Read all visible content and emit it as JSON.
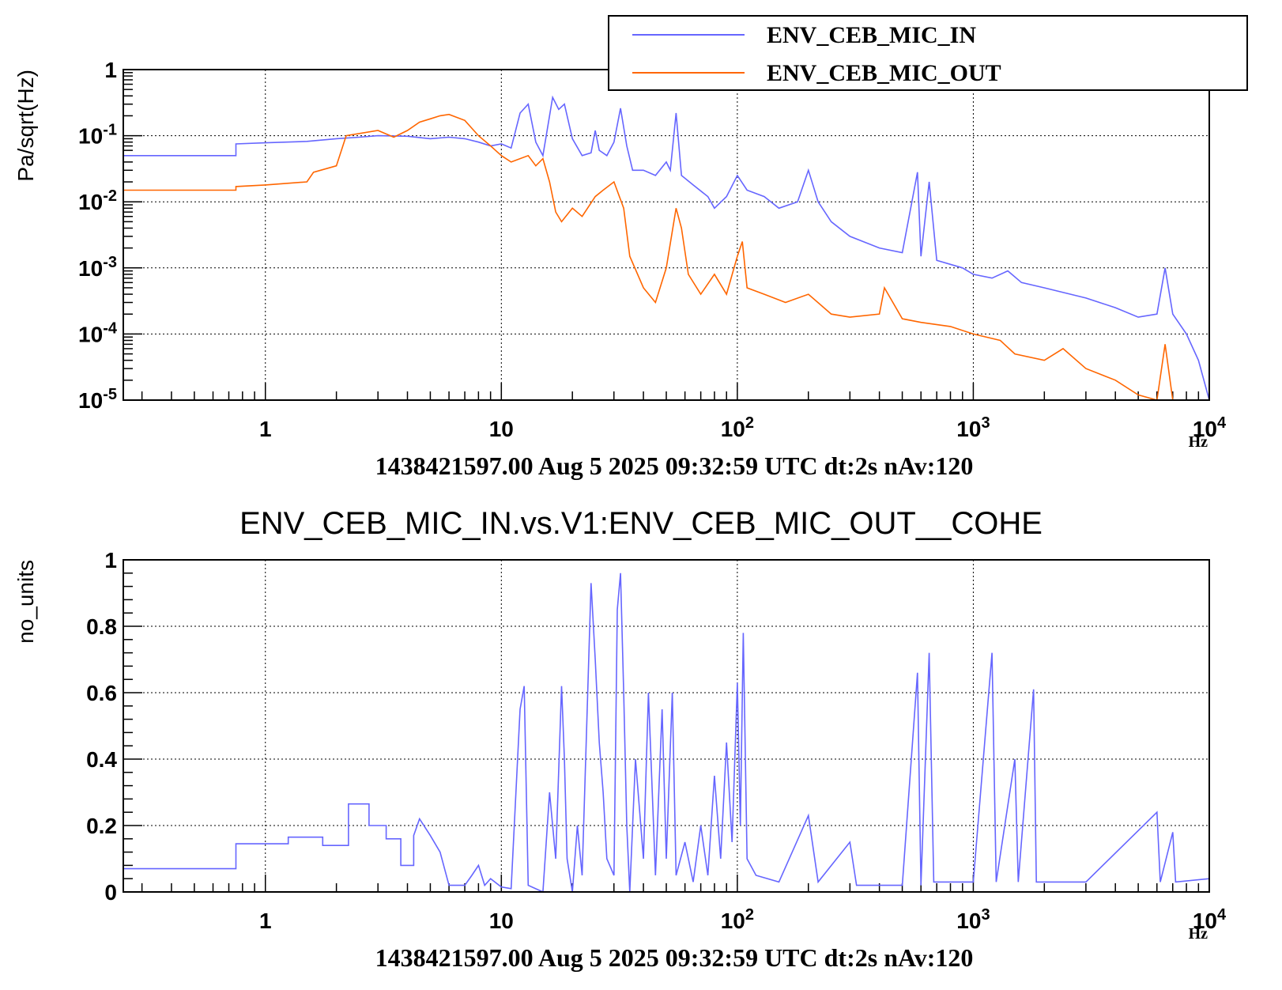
{
  "chart_data": [
    {
      "type": "line",
      "title": "",
      "xlabel": "Hz",
      "ylabel": "Pa/sqrt(Hz)",
      "xscale": "log",
      "yscale": "log",
      "xlim": [
        0.25,
        10000
      ],
      "ylim": [
        1e-05,
        1
      ],
      "grid": true,
      "legend_position": "top-right",
      "footer": "1438421597.00 Aug 5 2025 09:32:59 UTC dt:2s nAv:120",
      "x_tick_labels": [
        {
          "value": 1,
          "base": "1",
          "exp": ""
        },
        {
          "value": 10,
          "base": "10",
          "exp": ""
        },
        {
          "value": 100,
          "base": "10",
          "exp": "2"
        },
        {
          "value": 1000,
          "base": "10",
          "exp": "3"
        },
        {
          "value": 10000,
          "base": "10",
          "exp": "4"
        }
      ],
      "y_tick_labels": [
        {
          "value": 1,
          "base": "1",
          "exp": ""
        },
        {
          "value": 0.1,
          "base": "10",
          "exp": "-1"
        },
        {
          "value": 0.01,
          "base": "10",
          "exp": "-2"
        },
        {
          "value": 0.001,
          "base": "10",
          "exp": "-3"
        },
        {
          "value": 0.0001,
          "base": "10",
          "exp": "-4"
        },
        {
          "value": 1e-05,
          "base": "10",
          "exp": "-5"
        }
      ],
      "series": [
        {
          "name": "ENV_CEB_MIC_IN",
          "color": "#6666ff",
          "points": [
            [
              0.25,
              0.05
            ],
            [
              0.75,
              0.05
            ],
            [
              0.75,
              0.075
            ],
            [
              1.0,
              0.078
            ],
            [
              1.5,
              0.082
            ],
            [
              2.0,
              0.09
            ],
            [
              2.5,
              0.095
            ],
            [
              3.0,
              0.1
            ],
            [
              4.0,
              0.098
            ],
            [
              5.0,
              0.09
            ],
            [
              6.0,
              0.095
            ],
            [
              7.0,
              0.09
            ],
            [
              8.0,
              0.08
            ],
            [
              9.0,
              0.07
            ],
            [
              10.0,
              0.075
            ],
            [
              11.0,
              0.065
            ],
            [
              12.0,
              0.22
            ],
            [
              13.0,
              0.3
            ],
            [
              14.0,
              0.08
            ],
            [
              15.0,
              0.05
            ],
            [
              16.5,
              0.38
            ],
            [
              17.5,
              0.25
            ],
            [
              18.5,
              0.3
            ],
            [
              20.0,
              0.09
            ],
            [
              22.0,
              0.05
            ],
            [
              24.0,
              0.055
            ],
            [
              25.0,
              0.12
            ],
            [
              26.0,
              0.06
            ],
            [
              28.0,
              0.05
            ],
            [
              30.0,
              0.08
            ],
            [
              32.0,
              0.26
            ],
            [
              34.0,
              0.07
            ],
            [
              36.0,
              0.03
            ],
            [
              40.0,
              0.03
            ],
            [
              45.0,
              0.025
            ],
            [
              50.0,
              0.04
            ],
            [
              52.0,
              0.03
            ],
            [
              55.0,
              0.22
            ],
            [
              58.0,
              0.025
            ],
            [
              65.0,
              0.018
            ],
            [
              75.0,
              0.012
            ],
            [
              80.0,
              0.008
            ],
            [
              90.0,
              0.012
            ],
            [
              100.0,
              0.025
            ],
            [
              110.0,
              0.015
            ],
            [
              130.0,
              0.012
            ],
            [
              150.0,
              0.008
            ],
            [
              180.0,
              0.01
            ],
            [
              200.0,
              0.03
            ],
            [
              220.0,
              0.01
            ],
            [
              250.0,
              0.005
            ],
            [
              300.0,
              0.003
            ],
            [
              400.0,
              0.002
            ],
            [
              500.0,
              0.0017
            ],
            [
              580.0,
              0.028
            ],
            [
              600.0,
              0.0015
            ],
            [
              650.0,
              0.02
            ],
            [
              700.0,
              0.0013
            ],
            [
              900.0,
              0.001
            ],
            [
              1000.0,
              0.0008
            ],
            [
              1200.0,
              0.0007
            ],
            [
              1400.0,
              0.0009
            ],
            [
              1600.0,
              0.0006
            ],
            [
              2000.0,
              0.0005
            ],
            [
              3000.0,
              0.00035
            ],
            [
              4000.0,
              0.00025
            ],
            [
              5000.0,
              0.00018
            ],
            [
              6000.0,
              0.0002
            ],
            [
              6500.0,
              0.001
            ],
            [
              7000.0,
              0.0002
            ],
            [
              8000.0,
              0.0001
            ],
            [
              9000.0,
              4e-05
            ],
            [
              10000.0,
              1e-05
            ]
          ]
        },
        {
          "name": "ENV_CEB_MIC_OUT",
          "color": "#ff6600",
          "points": [
            [
              0.25,
              1.05e-05
            ],
            [
              0.25,
              0.015
            ],
            [
              0.75,
              0.015
            ],
            [
              0.75,
              0.017
            ],
            [
              1.0,
              0.018
            ],
            [
              1.5,
              0.02
            ],
            [
              1.6,
              0.028
            ],
            [
              2.0,
              0.035
            ],
            [
              2.2,
              0.1
            ],
            [
              3.0,
              0.12
            ],
            [
              3.5,
              0.095
            ],
            [
              4.0,
              0.12
            ],
            [
              4.5,
              0.16
            ],
            [
              5.0,
              0.18
            ],
            [
              5.5,
              0.2
            ],
            [
              6.0,
              0.21
            ],
            [
              7.0,
              0.17
            ],
            [
              8.0,
              0.1
            ],
            [
              9.0,
              0.07
            ],
            [
              10.0,
              0.05
            ],
            [
              11.0,
              0.04
            ],
            [
              13.0,
              0.05
            ],
            [
              14.0,
              0.035
            ],
            [
              15.0,
              0.045
            ],
            [
              16.0,
              0.02
            ],
            [
              17.0,
              0.007
            ],
            [
              18.0,
              0.005
            ],
            [
              20.0,
              0.008
            ],
            [
              22.0,
              0.006
            ],
            [
              25.0,
              0.012
            ],
            [
              27.0,
              0.015
            ],
            [
              30.0,
              0.02
            ],
            [
              33.0,
              0.008
            ],
            [
              35.0,
              0.0015
            ],
            [
              40.0,
              0.0005
            ],
            [
              45.0,
              0.0003
            ],
            [
              50.0,
              0.001
            ],
            [
              55.0,
              0.008
            ],
            [
              58.0,
              0.004
            ],
            [
              62.0,
              0.0008
            ],
            [
              70.0,
              0.0004
            ],
            [
              80.0,
              0.0008
            ],
            [
              90.0,
              0.0004
            ],
            [
              100.0,
              0.0015
            ],
            [
              105.0,
              0.0025
            ],
            [
              110.0,
              0.0005
            ],
            [
              130.0,
              0.0004
            ],
            [
              160.0,
              0.0003
            ],
            [
              200.0,
              0.0004
            ],
            [
              250.0,
              0.0002
            ],
            [
              300.0,
              0.00018
            ],
            [
              400.0,
              0.0002
            ],
            [
              420.0,
              0.0005
            ],
            [
              500.0,
              0.00017
            ],
            [
              600.0,
              0.00015
            ],
            [
              800.0,
              0.00013
            ],
            [
              1000.0,
              0.0001
            ],
            [
              1300.0,
              8e-05
            ],
            [
              1500.0,
              5e-05
            ],
            [
              2000.0,
              4e-05
            ],
            [
              2400.0,
              6e-05
            ],
            [
              3000.0,
              3e-05
            ],
            [
              4000.0,
              2e-05
            ],
            [
              5000.0,
              1.2e-05
            ],
            [
              6000.0,
              1e-05
            ],
            [
              6500.0,
              7e-05
            ],
            [
              7000.0,
              1e-05
            ]
          ]
        }
      ]
    },
    {
      "type": "line",
      "title": "ENV_CEB_MIC_IN.vs.V1:ENV_CEB_MIC_OUT__COHE",
      "xlabel": "Hz",
      "ylabel": "no_units",
      "xscale": "log",
      "yscale": "linear",
      "xlim": [
        0.25,
        10000
      ],
      "ylim": [
        0,
        1
      ],
      "grid": true,
      "footer": "1438421597.00 Aug 5 2025 09:32:59 UTC dt:2s nAv:120",
      "x_tick_labels": [
        {
          "value": 1,
          "base": "1",
          "exp": ""
        },
        {
          "value": 10,
          "base": "10",
          "exp": ""
        },
        {
          "value": 100,
          "base": "10",
          "exp": "2"
        },
        {
          "value": 1000,
          "base": "10",
          "exp": "3"
        },
        {
          "value": 10000,
          "base": "10",
          "exp": "4"
        }
      ],
      "y_tick_labels": [
        {
          "value": 0,
          "base": "0",
          "exp": ""
        },
        {
          "value": 0.2,
          "base": "0.2",
          "exp": ""
        },
        {
          "value": 0.4,
          "base": "0.4",
          "exp": ""
        },
        {
          "value": 0.6,
          "base": "0.6",
          "exp": ""
        },
        {
          "value": 0.8,
          "base": "0.8",
          "exp": ""
        },
        {
          "value": 1,
          "base": "1",
          "exp": ""
        }
      ],
      "series": [
        {
          "name": "",
          "color": "#6666ff",
          "points": [
            [
              0.25,
              0.07
            ],
            [
              0.75,
              0.07
            ],
            [
              0.75,
              0.145
            ],
            [
              1.25,
              0.145
            ],
            [
              1.25,
              0.165
            ],
            [
              1.75,
              0.165
            ],
            [
              1.75,
              0.14
            ],
            [
              2.25,
              0.14
            ],
            [
              2.25,
              0.265
            ],
            [
              2.75,
              0.265
            ],
            [
              2.75,
              0.2
            ],
            [
              3.25,
              0.2
            ],
            [
              3.25,
              0.16
            ],
            [
              3.75,
              0.16
            ],
            [
              3.75,
              0.08
            ],
            [
              4.25,
              0.08
            ],
            [
              4.25,
              0.17
            ],
            [
              4.5,
              0.22
            ],
            [
              5.0,
              0.17
            ],
            [
              5.5,
              0.12
            ],
            [
              6.0,
              0.02
            ],
            [
              7.0,
              0.02
            ],
            [
              7.5,
              0.05
            ],
            [
              8.0,
              0.08
            ],
            [
              8.5,
              0.02
            ],
            [
              9.0,
              0.04
            ],
            [
              10.0,
              0.015
            ],
            [
              11.0,
              0.01
            ],
            [
              12.0,
              0.55
            ],
            [
              12.5,
              0.62
            ],
            [
              13.0,
              0.02
            ],
            [
              15.0,
              0.0
            ],
            [
              16.0,
              0.3
            ],
            [
              17.0,
              0.1
            ],
            [
              18.0,
              0.62
            ],
            [
              18.5,
              0.4
            ],
            [
              19.0,
              0.1
            ],
            [
              20.0,
              0.0
            ],
            [
              21.0,
              0.2
            ],
            [
              22.0,
              0.05
            ],
            [
              23.0,
              0.5
            ],
            [
              24.0,
              0.93
            ],
            [
              25.0,
              0.7
            ],
            [
              26.0,
              0.45
            ],
            [
              27.0,
              0.3
            ],
            [
              28.0,
              0.1
            ],
            [
              30.0,
              0.05
            ],
            [
              31.0,
              0.85
            ],
            [
              32.0,
              0.96
            ],
            [
              33.0,
              0.6
            ],
            [
              34.0,
              0.2
            ],
            [
              35.0,
              0.0
            ],
            [
              37.0,
              0.4
            ],
            [
              40.0,
              0.1
            ],
            [
              42.0,
              0.6
            ],
            [
              45.0,
              0.05
            ],
            [
              48.0,
              0.55
            ],
            [
              50.0,
              0.1
            ],
            [
              53.0,
              0.6
            ],
            [
              55.0,
              0.05
            ],
            [
              60.0,
              0.15
            ],
            [
              65.0,
              0.03
            ],
            [
              70.0,
              0.2
            ],
            [
              75.0,
              0.05
            ],
            [
              80.0,
              0.35
            ],
            [
              85.0,
              0.1
            ],
            [
              90.0,
              0.45
            ],
            [
              95.0,
              0.15
            ],
            [
              100.0,
              0.63
            ],
            [
              103.0,
              0.2
            ],
            [
              106.0,
              0.78
            ],
            [
              110.0,
              0.1
            ],
            [
              120.0,
              0.05
            ],
            [
              150.0,
              0.03
            ],
            [
              200.0,
              0.23
            ],
            [
              220.0,
              0.03
            ],
            [
              300.0,
              0.15
            ],
            [
              320.0,
              0.02
            ],
            [
              500.0,
              0.02
            ],
            [
              580.0,
              0.66
            ],
            [
              600.0,
              0.02
            ],
            [
              650.0,
              0.72
            ],
            [
              680.0,
              0.03
            ],
            [
              1000.0,
              0.03
            ],
            [
              1200.0,
              0.72
            ],
            [
              1250.0,
              0.03
            ],
            [
              1500.0,
              0.4
            ],
            [
              1550.0,
              0.03
            ],
            [
              1800.0,
              0.61
            ],
            [
              1850.0,
              0.03
            ],
            [
              3000.0,
              0.03
            ],
            [
              6000.0,
              0.24
            ],
            [
              6200.0,
              0.03
            ],
            [
              7000.0,
              0.18
            ],
            [
              7200.0,
              0.03
            ],
            [
              10000.0,
              0.04
            ]
          ]
        }
      ]
    }
  ]
}
